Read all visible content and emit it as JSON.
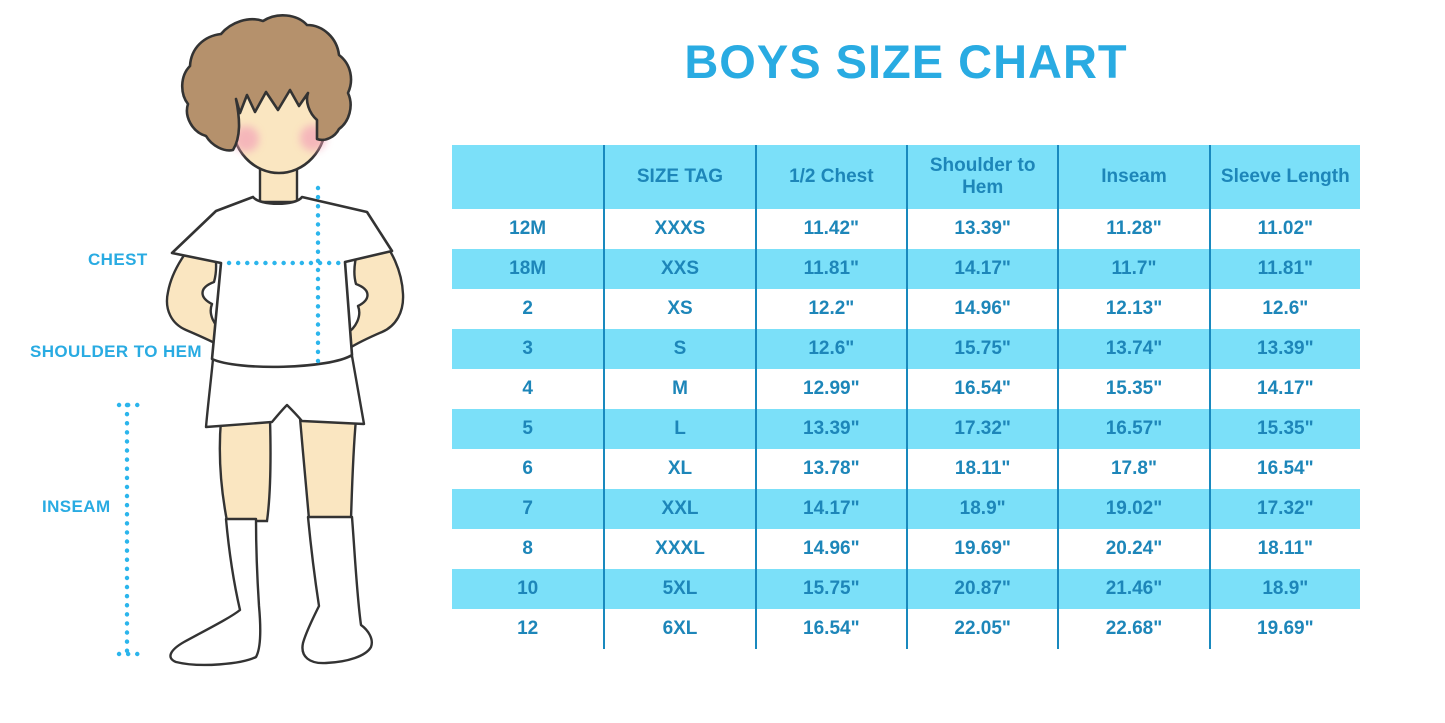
{
  "title": "BOYS SIZE CHART",
  "figure": {
    "labels": {
      "chest": "CHEST",
      "shoulder_to_hem": "SHOULDER TO HEM",
      "inseam": "INSEAM"
    }
  },
  "colors": {
    "accent_blue": "#29ABE2",
    "table_text_blue": "#1D86B9",
    "row_cyan": "#7BE0F9",
    "border_blue": "#1989BE",
    "dotted_line_cyan": "#2BB5EC",
    "skin": "#FAE6C1",
    "hair_brown": "#B5916C",
    "blush_pink": "#F3A3B8"
  },
  "chart_data": {
    "type": "table",
    "title": "BOYS SIZE CHART",
    "columns": [
      "",
      "SIZE TAG",
      "1/2 Chest",
      "Shoulder to Hem",
      "Inseam",
      "Sleeve Length"
    ],
    "rows": [
      [
        "12M",
        "XXXS",
        "11.42\"",
        "13.39\"",
        "11.28\"",
        "11.02\""
      ],
      [
        "18M",
        "XXS",
        "11.81\"",
        "14.17\"",
        "11.7\"",
        "11.81\""
      ],
      [
        "2",
        "XS",
        "12.2\"",
        "14.96\"",
        "12.13\"",
        "12.6\""
      ],
      [
        "3",
        "S",
        "12.6\"",
        "15.75\"",
        "13.74\"",
        "13.39\""
      ],
      [
        "4",
        "M",
        "12.99\"",
        "16.54\"",
        "15.35\"",
        "14.17\""
      ],
      [
        "5",
        "L",
        "13.39\"",
        "17.32\"",
        "16.57\"",
        "15.35\""
      ],
      [
        "6",
        "XL",
        "13.78\"",
        "18.11\"",
        "17.8\"",
        "16.54\""
      ],
      [
        "7",
        "XXL",
        "14.17\"",
        "18.9\"",
        "19.02\"",
        "17.32\""
      ],
      [
        "8",
        "XXXL",
        "14.96\"",
        "19.69\"",
        "20.24\"",
        "18.11\""
      ],
      [
        "10",
        "5XL",
        "15.75\"",
        "20.87\"",
        "21.46\"",
        "18.9\""
      ],
      [
        "12",
        "6XL",
        "16.54\"",
        "22.05\"",
        "22.68\"",
        "19.69\""
      ]
    ],
    "row_striping": "header and alternate rows (18M,3,5,7,10) cyan, others white",
    "units": "inches"
  }
}
